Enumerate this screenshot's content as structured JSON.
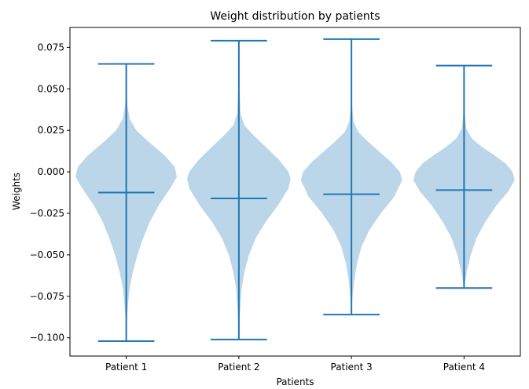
{
  "chart_data": {
    "type": "violin",
    "title": "Weight distribution by patients",
    "xlabel": "Patients",
    "ylabel": "Weights",
    "categories": [
      "Patient 1",
      "Patient 2",
      "Patient 3",
      "Patient 4"
    ],
    "ylim": [
      -0.111,
      0.087
    ],
    "yticks": [
      0.075,
      0.05,
      0.025,
      0.0,
      -0.025,
      -0.05,
      -0.075,
      -0.1
    ],
    "ytick_labels": [
      "0.075",
      "0.050",
      "0.025",
      "0.000",
      "−0.025",
      "−0.050",
      "−0.075",
      "−0.100"
    ],
    "grid": false,
    "colors": {
      "body": "#1f77b4",
      "body_opacity": 0.3,
      "lines": "#1f77b4"
    },
    "series": [
      {
        "label": "Patient 1",
        "min": -0.102,
        "median": -0.0125,
        "max": 0.065,
        "profile": [
          [
            -0.102,
            0.0
          ],
          [
            -0.09,
            0.01
          ],
          [
            -0.08,
            0.03
          ],
          [
            -0.07,
            0.06
          ],
          [
            -0.06,
            0.12
          ],
          [
            -0.05,
            0.2
          ],
          [
            -0.04,
            0.3
          ],
          [
            -0.03,
            0.42
          ],
          [
            -0.02,
            0.58
          ],
          [
            -0.01,
            0.78
          ],
          [
            -0.003,
            0.9
          ],
          [
            0.003,
            0.86
          ],
          [
            0.01,
            0.68
          ],
          [
            0.018,
            0.4
          ],
          [
            0.025,
            0.18
          ],
          [
            0.032,
            0.06
          ],
          [
            0.04,
            0.02
          ],
          [
            0.05,
            0.006
          ],
          [
            0.065,
            0.0
          ]
        ]
      },
      {
        "label": "Patient 2",
        "min": -0.101,
        "median": -0.016,
        "max": 0.079,
        "profile": [
          [
            -0.101,
            0.0
          ],
          [
            -0.09,
            0.01
          ],
          [
            -0.08,
            0.03
          ],
          [
            -0.07,
            0.05
          ],
          [
            -0.06,
            0.1
          ],
          [
            -0.05,
            0.18
          ],
          [
            -0.04,
            0.3
          ],
          [
            -0.03,
            0.48
          ],
          [
            -0.02,
            0.7
          ],
          [
            -0.01,
            0.88
          ],
          [
            -0.004,
            0.92
          ],
          [
            0.0,
            0.88
          ],
          [
            0.007,
            0.72
          ],
          [
            0.015,
            0.48
          ],
          [
            0.022,
            0.26
          ],
          [
            0.028,
            0.1
          ],
          [
            0.035,
            0.03
          ],
          [
            0.05,
            0.01
          ],
          [
            0.079,
            0.0
          ]
        ]
      },
      {
        "label": "Patient 3",
        "min": -0.086,
        "median": -0.0135,
        "max": 0.08,
        "profile": [
          [
            -0.086,
            0.0
          ],
          [
            -0.075,
            0.02
          ],
          [
            -0.065,
            0.05
          ],
          [
            -0.055,
            0.1
          ],
          [
            -0.045,
            0.18
          ],
          [
            -0.035,
            0.32
          ],
          [
            -0.025,
            0.52
          ],
          [
            -0.015,
            0.76
          ],
          [
            -0.005,
            0.9
          ],
          [
            0.0,
            0.86
          ],
          [
            0.006,
            0.7
          ],
          [
            0.012,
            0.5
          ],
          [
            0.018,
            0.3
          ],
          [
            0.024,
            0.12
          ],
          [
            0.03,
            0.04
          ],
          [
            0.04,
            0.01
          ],
          [
            0.06,
            0.004
          ],
          [
            0.08,
            0.0
          ]
        ]
      },
      {
        "label": "Patient 4",
        "min": -0.07,
        "median": -0.011,
        "max": 0.064,
        "profile": [
          [
            -0.07,
            0.0
          ],
          [
            -0.06,
            0.05
          ],
          [
            -0.05,
            0.12
          ],
          [
            -0.04,
            0.22
          ],
          [
            -0.03,
            0.38
          ],
          [
            -0.02,
            0.58
          ],
          [
            -0.012,
            0.78
          ],
          [
            -0.005,
            0.9
          ],
          [
            0.0,
            0.86
          ],
          [
            0.005,
            0.74
          ],
          [
            0.01,
            0.54
          ],
          [
            0.015,
            0.32
          ],
          [
            0.02,
            0.14
          ],
          [
            0.026,
            0.04
          ],
          [
            0.035,
            0.01
          ],
          [
            0.064,
            0.0
          ]
        ]
      }
    ]
  }
}
